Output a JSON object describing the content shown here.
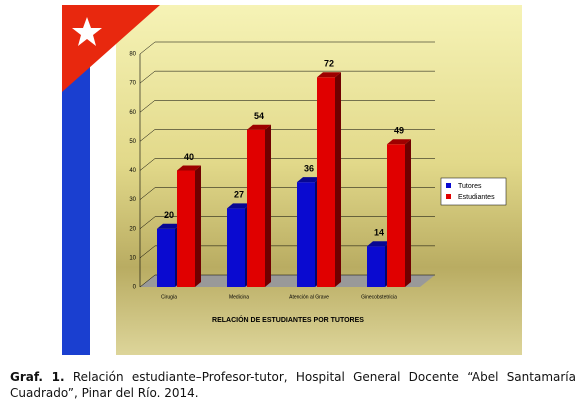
{
  "chart_data": {
    "type": "bar",
    "x_label": "RELACIÓN DE ESTUDIANTES POR TUTORES",
    "categories": [
      "Cirugía",
      "Medicina",
      "Atención al Grave",
      "Ginecobstetricia"
    ],
    "series": [
      {
        "name": "Tutores",
        "color": "#0a0ad0",
        "values": [
          20,
          27,
          36,
          14
        ]
      },
      {
        "name": "Estudiantes",
        "color": "#e00000",
        "values": [
          40,
          54,
          72,
          49
        ]
      }
    ],
    "ylim": [
      0,
      80
    ],
    "yticks": [
      0,
      10,
      20,
      30,
      40,
      50,
      60,
      70,
      80
    ],
    "grid": true,
    "legend": "right"
  },
  "caption": {
    "label": "Graf. 1.",
    "text": "Relación estudiante–Profesor-tutor, Hospital General Docente “Abel Santamaría Cuadrado”, Pinar del Río. 2014."
  }
}
